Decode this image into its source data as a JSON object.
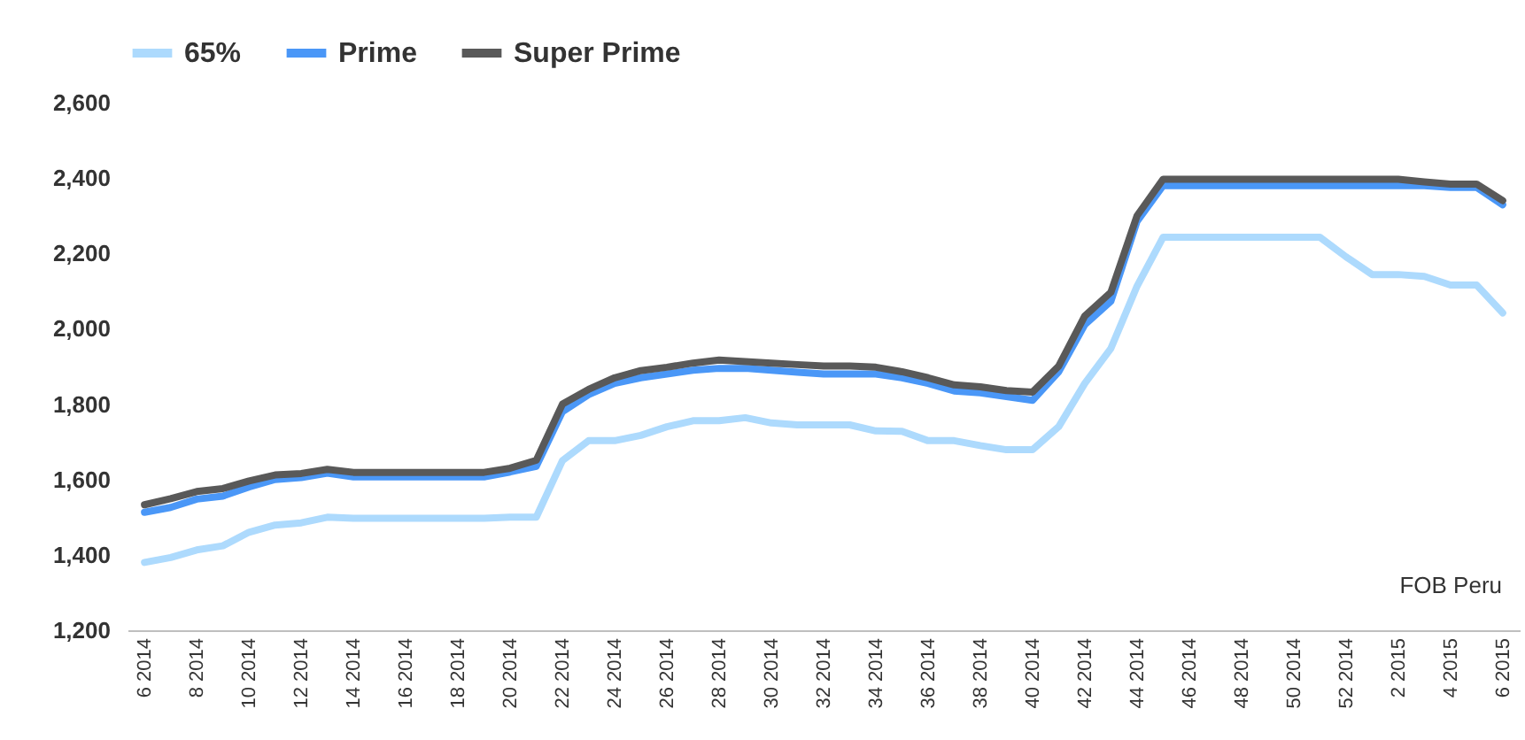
{
  "chart_data": {
    "type": "line",
    "categories": [
      "6 2014",
      null,
      "8 2014",
      null,
      "10 2014",
      null,
      "12 2014",
      null,
      "14 2014",
      null,
      "16 2014",
      null,
      "18 2014",
      null,
      "20 2014",
      null,
      "22 2014",
      null,
      "24 2014",
      null,
      "26 2014",
      null,
      "28 2014",
      null,
      "30 2014",
      null,
      "32 2014",
      null,
      "34 2014",
      null,
      "36 2014",
      null,
      "38 2014",
      null,
      "40 2014",
      null,
      "42 2014",
      null,
      "44 2014",
      null,
      "46 2014",
      null,
      "48 2014",
      null,
      "50 2014",
      null,
      "52 2014",
      null,
      "2 2015",
      null,
      "4 2015",
      null,
      "6 2015"
    ],
    "series": [
      {
        "name": "65%",
        "color": "#addafd",
        "values": [
          1380,
          1393,
          1413,
          1424,
          1460,
          1479,
          1485,
          1500,
          1497,
          1497,
          1497,
          1497,
          1497,
          1497,
          1500,
          1500,
          1650,
          1703,
          1703,
          1717,
          1740,
          1756,
          1756,
          1764,
          1750,
          1745,
          1745,
          1745,
          1729,
          1728,
          1703,
          1703,
          1690,
          1679,
          1679,
          1740,
          1855,
          1948,
          2113,
          2243,
          2243,
          2243,
          2243,
          2243,
          2243,
          2243,
          2191,
          2144,
          2144,
          2139,
          2116,
          2116,
          2042
        ]
      },
      {
        "name": "Prime",
        "color": "#4a97f7",
        "values": [
          1513,
          1526,
          1548,
          1556,
          1580,
          1600,
          1605,
          1617,
          1607,
          1607,
          1607,
          1607,
          1607,
          1607,
          1620,
          1635,
          1780,
          1825,
          1855,
          1870,
          1880,
          1890,
          1895,
          1895,
          1890,
          1885,
          1880,
          1880,
          1880,
          1870,
          1855,
          1835,
          1830,
          1820,
          1810,
          1886,
          2011,
          2073,
          2285,
          2380,
          2380,
          2380,
          2380,
          2380,
          2380,
          2380,
          2380,
          2380,
          2380,
          2380,
          2375,
          2375,
          2329
        ]
      },
      {
        "name": "Super Prime",
        "color": "#595959",
        "values": [
          1533,
          1549,
          1568,
          1576,
          1596,
          1612,
          1616,
          1627,
          1619,
          1619,
          1619,
          1619,
          1619,
          1619,
          1630,
          1651,
          1800,
          1839,
          1870,
          1889,
          1898,
          1909,
          1917,
          1913,
          1909,
          1905,
          1901,
          1901,
          1898,
          1886,
          1870,
          1851,
          1846,
          1836,
          1832,
          1901,
          2034,
          2097,
          2300,
          2397,
          2397,
          2397,
          2397,
          2397,
          2397,
          2397,
          2397,
          2397,
          2397,
          2390,
          2384,
          2384,
          2340
        ]
      }
    ],
    "ylim": [
      1200,
      2600
    ],
    "yticks": [
      {
        "value": 1200,
        "label": "1,200"
      },
      {
        "value": 1400,
        "label": "1,400"
      },
      {
        "value": 1600,
        "label": "1,600"
      },
      {
        "value": 1800,
        "label": "1,800"
      },
      {
        "value": 2000,
        "label": "2,000"
      },
      {
        "value": 2200,
        "label": "2,200"
      },
      {
        "value": 2400,
        "label": "2,400"
      },
      {
        "value": 2600,
        "label": "2,600"
      }
    ],
    "annotations": [
      "FOB Peru"
    ],
    "legend": "top",
    "marker": "none",
    "line_style": "solid"
  }
}
